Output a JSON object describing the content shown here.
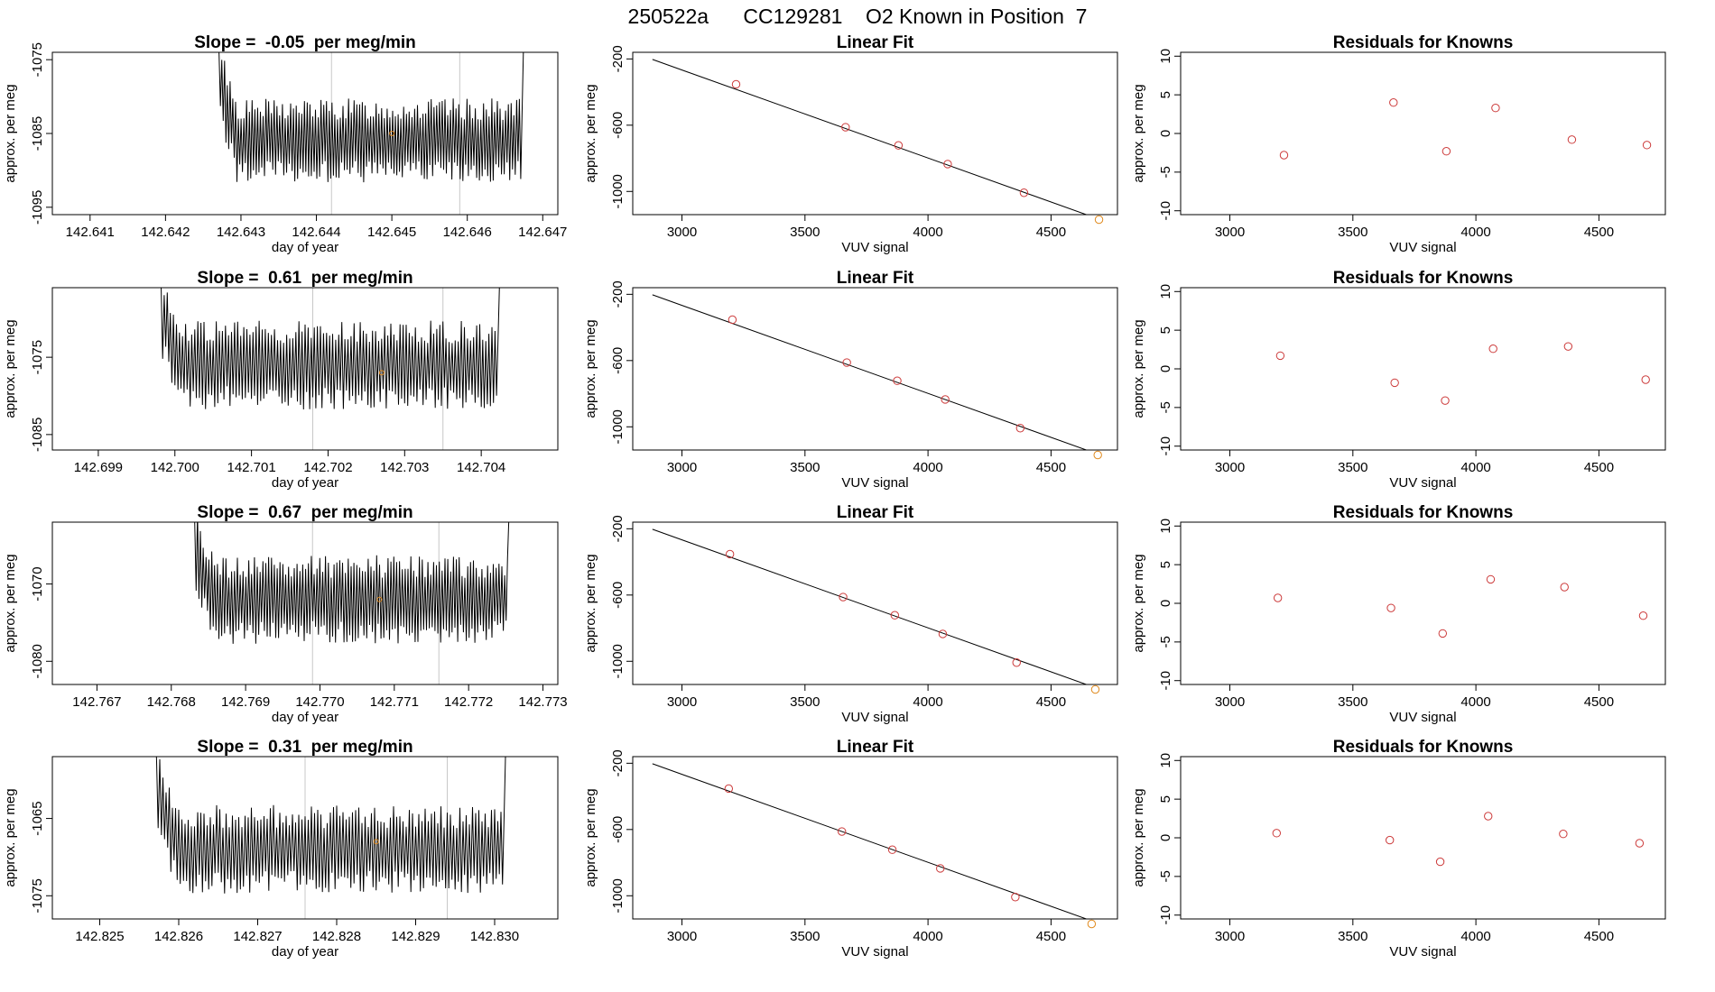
{
  "page_title": "250522a      CC129281    O2 Known in Position  7",
  "colors": {
    "trace": "#000000",
    "marker_normal": "#cc3a3a",
    "marker_highlight": "#e08a1e",
    "vline": "#c8c8c8",
    "fitline": "#000000"
  },
  "chart_data": [
    {
      "type": "line",
      "row": 1,
      "title": "Slope =  -0.05  per meg/min",
      "xlabel": "day of year",
      "ylabel": "approx. per meg",
      "xlim": [
        142.6405,
        142.6472
      ],
      "ylim": [
        -1096,
        -1074
      ],
      "xticks": [
        "142.641",
        "142.642",
        "142.643",
        "142.644",
        "142.645",
        "142.646",
        "142.647"
      ],
      "yticks": [
        "-1095",
        "-1085",
        "-1075"
      ],
      "trace": {
        "x_start": 142.6426,
        "x_end": 142.6468,
        "base": -1086,
        "amp": 5,
        "start_peak": -1074
      },
      "vlines": [
        142.6442,
        142.6459
      ],
      "marker": {
        "x": 142.645,
        "y": -1085
      }
    },
    {
      "type": "scatter",
      "row": 1,
      "title": "Linear Fit",
      "xlabel": "VUV signal",
      "ylabel": "approx. per meg",
      "xlim": [
        2800,
        4770
      ],
      "ylim": [
        -1140,
        -160
      ],
      "xticks": [
        "3000",
        "3500",
        "4000",
        "4500"
      ],
      "yticks": [
        "-1000",
        "-600",
        "-200"
      ],
      "x": [
        3220,
        3665,
        3880,
        4080,
        4390,
        4695
      ],
      "y": [
        -353,
        -612,
        -722,
        -835,
        -1008,
        -1170
      ],
      "fit": {
        "x": [
          2880,
          4700
        ],
        "y": [
          -203,
          -1170
        ]
      },
      "highlight_index": 5
    },
    {
      "type": "scatter",
      "row": 1,
      "title": "Residuals for Knowns",
      "xlabel": "VUV signal",
      "ylabel": "approx. per meg",
      "xlim": [
        2800,
        4770
      ],
      "ylim": [
        -10.5,
        10.5
      ],
      "xticks": [
        "3000",
        "3500",
        "4000",
        "4500"
      ],
      "yticks": [
        "-10",
        "-5",
        "0",
        "5",
        "10"
      ],
      "x": [
        3220,
        3665,
        3880,
        4080,
        4390,
        4695
      ],
      "y": [
        -2.8,
        4.0,
        -2.3,
        3.3,
        -0.8,
        -1.5
      ]
    },
    {
      "type": "line",
      "row": 2,
      "title": "Slope =  0.61  per meg/min",
      "xlabel": "day of year",
      "ylabel": "approx. per meg",
      "xlim": [
        142.6984,
        142.705
      ],
      "ylim": [
        -1087,
        -1066
      ],
      "xticks": [
        "142.699",
        "142.700",
        "142.701",
        "142.702",
        "142.703",
        "142.704"
      ],
      "yticks": [
        "-1085",
        "-1075"
      ],
      "trace": {
        "x_start": 142.6997,
        "x_end": 142.7043,
        "base": -1076,
        "amp": 5,
        "start_peak": -1066
      },
      "vlines": [
        142.7018,
        142.7035
      ],
      "marker": {
        "x": 142.7027,
        "y": -1077
      }
    },
    {
      "type": "scatter",
      "row": 2,
      "title": "Linear Fit",
      "xlabel": "VUV signal",
      "ylabel": "approx. per meg",
      "xlim": [
        2800,
        4770
      ],
      "ylim": [
        -1140,
        -160
      ],
      "xticks": [
        "3000",
        "3500",
        "4000",
        "4500"
      ],
      "yticks": [
        "-1000",
        "-600",
        "-200"
      ],
      "x": [
        3205,
        3670,
        3875,
        4070,
        4375,
        4690
      ],
      "y": [
        -353,
        -612,
        -722,
        -835,
        -1008,
        -1170
      ],
      "fit": {
        "x": [
          2880,
          4700
        ],
        "y": [
          -203,
          -1170
        ]
      },
      "highlight_index": 5
    },
    {
      "type": "scatter",
      "row": 2,
      "title": "Residuals for Knowns",
      "xlabel": "VUV signal",
      "ylabel": "approx. per meg",
      "xlim": [
        2800,
        4770
      ],
      "ylim": [
        -10.5,
        10.5
      ],
      "xticks": [
        "3000",
        "3500",
        "4000",
        "4500"
      ],
      "yticks": [
        "-10",
        "-5",
        "0",
        "5",
        "10"
      ],
      "x": [
        3205,
        3670,
        3875,
        4070,
        4375,
        4690
      ],
      "y": [
        1.7,
        -1.8,
        -4.1,
        2.6,
        2.9,
        -1.4
      ]
    },
    {
      "type": "line",
      "row": 3,
      "title": "Slope =  0.67  per meg/min",
      "xlabel": "day of year",
      "ylabel": "approx. per meg",
      "xlim": [
        142.7664,
        142.7732
      ],
      "ylim": [
        -1083,
        -1062
      ],
      "xticks": [
        "142.767",
        "142.768",
        "142.769",
        "142.770",
        "142.771",
        "142.772",
        "142.773"
      ],
      "yticks": [
        "-1080",
        "-1070"
      ],
      "trace": {
        "x_start": 142.7682,
        "x_end": 142.7726,
        "base": -1072,
        "amp": 5,
        "start_peak": -1062
      },
      "vlines": [
        142.7699,
        142.7716
      ],
      "marker": {
        "x": 142.7708,
        "y": -1072
      }
    },
    {
      "type": "scatter",
      "row": 3,
      "title": "Linear Fit",
      "xlabel": "VUV signal",
      "ylabel": "approx. per meg",
      "xlim": [
        2800,
        4770
      ],
      "ylim": [
        -1140,
        -160
      ],
      "xticks": [
        "3000",
        "3500",
        "4000",
        "4500"
      ],
      "yticks": [
        "-1000",
        "-600",
        "-200"
      ],
      "x": [
        3195,
        3655,
        3865,
        4060,
        4360,
        4680
      ],
      "y": [
        -353,
        -612,
        -722,
        -835,
        -1008,
        -1170
      ],
      "fit": {
        "x": [
          2880,
          4700
        ],
        "y": [
          -203,
          -1170
        ]
      },
      "highlight_index": 5
    },
    {
      "type": "scatter",
      "row": 3,
      "title": "Residuals for Knowns",
      "xlabel": "VUV signal",
      "ylabel": "approx. per meg",
      "xlim": [
        2800,
        4770
      ],
      "ylim": [
        -10.5,
        10.5
      ],
      "xticks": [
        "3000",
        "3500",
        "4000",
        "4500"
      ],
      "yticks": [
        "-10",
        "-5",
        "0",
        "5",
        "10"
      ],
      "x": [
        3195,
        3655,
        3865,
        4060,
        4360,
        4680
      ],
      "y": [
        0.7,
        -0.6,
        -3.9,
        3.1,
        2.1,
        -1.6
      ]
    },
    {
      "type": "line",
      "row": 4,
      "title": "Slope =  0.31  per meg/min",
      "xlabel": "day of year",
      "ylabel": "approx. per meg",
      "xlim": [
        142.8244,
        142.8308
      ],
      "ylim": [
        -1078,
        -1057
      ],
      "xticks": [
        "142.825",
        "142.826",
        "142.827",
        "142.828",
        "142.829",
        "142.830"
      ],
      "yticks": [
        "-1075",
        "-1065"
      ],
      "trace": {
        "x_start": 142.8256,
        "x_end": 142.8302,
        "base": -1069,
        "amp": 5,
        "start_peak": -1057
      },
      "vlines": [
        142.8276,
        142.8294
      ],
      "marker": {
        "x": 142.8285,
        "y": -1068
      }
    },
    {
      "type": "scatter",
      "row": 4,
      "title": "Linear Fit",
      "xlabel": "VUV signal",
      "ylabel": "approx. per meg",
      "xlim": [
        2800,
        4770
      ],
      "ylim": [
        -1140,
        -160
      ],
      "xticks": [
        "3000",
        "3500",
        "4000",
        "4500"
      ],
      "yticks": [
        "-1000",
        "-600",
        "-200"
      ],
      "x": [
        3190,
        3650,
        3855,
        4050,
        4355,
        4665
      ],
      "y": [
        -353,
        -612,
        -722,
        -835,
        -1008,
        -1170
      ],
      "fit": {
        "x": [
          2880,
          4700
        ],
        "y": [
          -203,
          -1170
        ]
      },
      "highlight_index": 5
    },
    {
      "type": "scatter",
      "row": 4,
      "title": "Residuals for Knowns",
      "xlabel": "VUV signal",
      "ylabel": "approx. per meg",
      "xlim": [
        2800,
        4770
      ],
      "ylim": [
        -10.5,
        10.5
      ],
      "xticks": [
        "3000",
        "3500",
        "4000",
        "4500"
      ],
      "yticks": [
        "-10",
        "-5",
        "0",
        "5",
        "10"
      ],
      "x": [
        3190,
        3650,
        3855,
        4050,
        4355,
        4665
      ],
      "y": [
        0.6,
        -0.3,
        -3.1,
        2.8,
        0.5,
        -0.7
      ]
    }
  ]
}
